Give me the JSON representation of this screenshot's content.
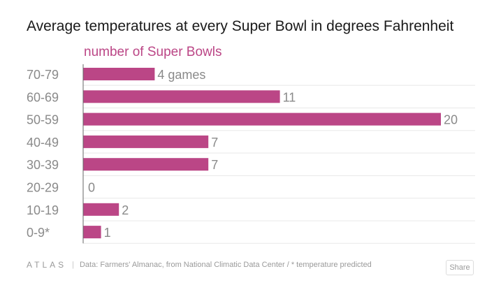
{
  "chart_data": {
    "type": "bar",
    "orientation": "horizontal",
    "title": "Average temperatures at every Super Bowl in degrees Fahrenheit",
    "subtitle": "number of Super Bowls",
    "categories": [
      "70-79",
      "60-69",
      "50-59",
      "40-49",
      "30-39",
      "20-29",
      "10-19",
      "0-9*"
    ],
    "values": [
      4,
      11,
      20,
      7,
      7,
      0,
      2,
      1
    ],
    "value_labels": [
      "4 games",
      "11",
      "20",
      "7",
      "7",
      "0",
      "2",
      "1"
    ],
    "xlabel": "number of Super Bowls",
    "ylabel": "",
    "xlim": [
      0,
      20
    ],
    "grid": true
  },
  "colors": {
    "bar": "#bb4686",
    "subtitle": "#bb4686",
    "label": "#8a8a8a",
    "grid": "#e8e8e8",
    "axis": "#666666"
  },
  "footer": {
    "logo": "ATLAS",
    "separator": "|",
    "source": "Data:  Farmers' Almanac, from National Climatic Data Center / * temperature predicted",
    "share_label": "Share"
  }
}
